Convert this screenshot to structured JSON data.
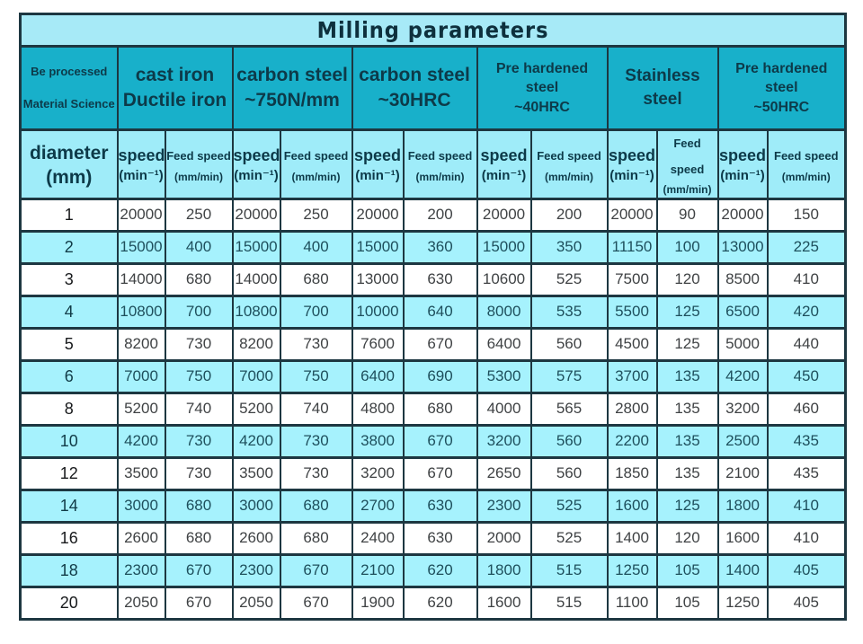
{
  "table": {
    "title": "Milling parameters",
    "corner": {
      "line1": "Be processed",
      "line2": "Material Science"
    },
    "diameter_header": {
      "line1": "diameter",
      "line2": "(mm)"
    },
    "speed_header": {
      "line1": "speed",
      "line2": "(min⁻¹)"
    },
    "feed_header": {
      "line1": "Feed speed",
      "line2": "(mm/min)"
    },
    "materials": [
      {
        "line1": "cast iron",
        "line2": "Ductile iron"
      },
      {
        "line1": "carbon steel",
        "line2": "~750N/mm"
      },
      {
        "line1": "carbon steel",
        "line2": "~30HRC"
      },
      {
        "line1": "Pre hardened steel",
        "line2": "~40HRC"
      },
      {
        "line1": "Stainless steel",
        "line2": ""
      },
      {
        "line1": "Pre hardened steel",
        "line2": "~50HRC"
      }
    ],
    "rows": [
      {
        "diameter": "1",
        "values": [
          "20000",
          "250",
          "20000",
          "250",
          "20000",
          "200",
          "20000",
          "200",
          "20000",
          "90",
          "20000",
          "150"
        ]
      },
      {
        "diameter": "2",
        "values": [
          "15000",
          "400",
          "15000",
          "400",
          "15000",
          "360",
          "15000",
          "350",
          "11150",
          "100",
          "13000",
          "225"
        ]
      },
      {
        "diameter": "3",
        "values": [
          "14000",
          "680",
          "14000",
          "680",
          "13000",
          "630",
          "10600",
          "525",
          "7500",
          "120",
          "8500",
          "410"
        ]
      },
      {
        "diameter": "4",
        "values": [
          "10800",
          "700",
          "10800",
          "700",
          "10000",
          "640",
          "8000",
          "535",
          "5500",
          "125",
          "6500",
          "420"
        ]
      },
      {
        "diameter": "5",
        "values": [
          "8200",
          "730",
          "8200",
          "730",
          "7600",
          "670",
          "6400",
          "560",
          "4500",
          "125",
          "5000",
          "440"
        ]
      },
      {
        "diameter": "6",
        "values": [
          "7000",
          "750",
          "7000",
          "750",
          "6400",
          "690",
          "5300",
          "575",
          "3700",
          "135",
          "4200",
          "450"
        ]
      },
      {
        "diameter": "8",
        "values": [
          "5200",
          "740",
          "5200",
          "740",
          "4800",
          "680",
          "4000",
          "565",
          "2800",
          "135",
          "3200",
          "460"
        ]
      },
      {
        "diameter": "10",
        "values": [
          "4200",
          "730",
          "4200",
          "730",
          "3800",
          "670",
          "3200",
          "560",
          "2200",
          "135",
          "2500",
          "435"
        ]
      },
      {
        "diameter": "12",
        "values": [
          "3500",
          "730",
          "3500",
          "730",
          "3200",
          "670",
          "2650",
          "560",
          "1850",
          "135",
          "2100",
          "435"
        ]
      },
      {
        "diameter": "14",
        "values": [
          "3000",
          "680",
          "3000",
          "680",
          "2700",
          "630",
          "2300",
          "525",
          "1600",
          "125",
          "1800",
          "410"
        ]
      },
      {
        "diameter": "16",
        "values": [
          "2600",
          "680",
          "2600",
          "680",
          "2400",
          "630",
          "2000",
          "525",
          "1400",
          "120",
          "1600",
          "410"
        ]
      },
      {
        "diameter": "18",
        "values": [
          "2300",
          "670",
          "2300",
          "670",
          "2100",
          "620",
          "1800",
          "515",
          "1250",
          "105",
          "1400",
          "405"
        ]
      },
      {
        "diameter": "20",
        "values": [
          "2050",
          "670",
          "2050",
          "670",
          "1900",
          "620",
          "1600",
          "515",
          "1100",
          "105",
          "1250",
          "405"
        ]
      }
    ]
  },
  "colors": {
    "border": "#1d3741",
    "teal": "#18b0ca",
    "titlebg": "#a7eaf7",
    "subbg": "#9fecf9",
    "zebra": "#a6f2fd",
    "headertext": "#0d3a49",
    "titletext": "#0e303d"
  }
}
